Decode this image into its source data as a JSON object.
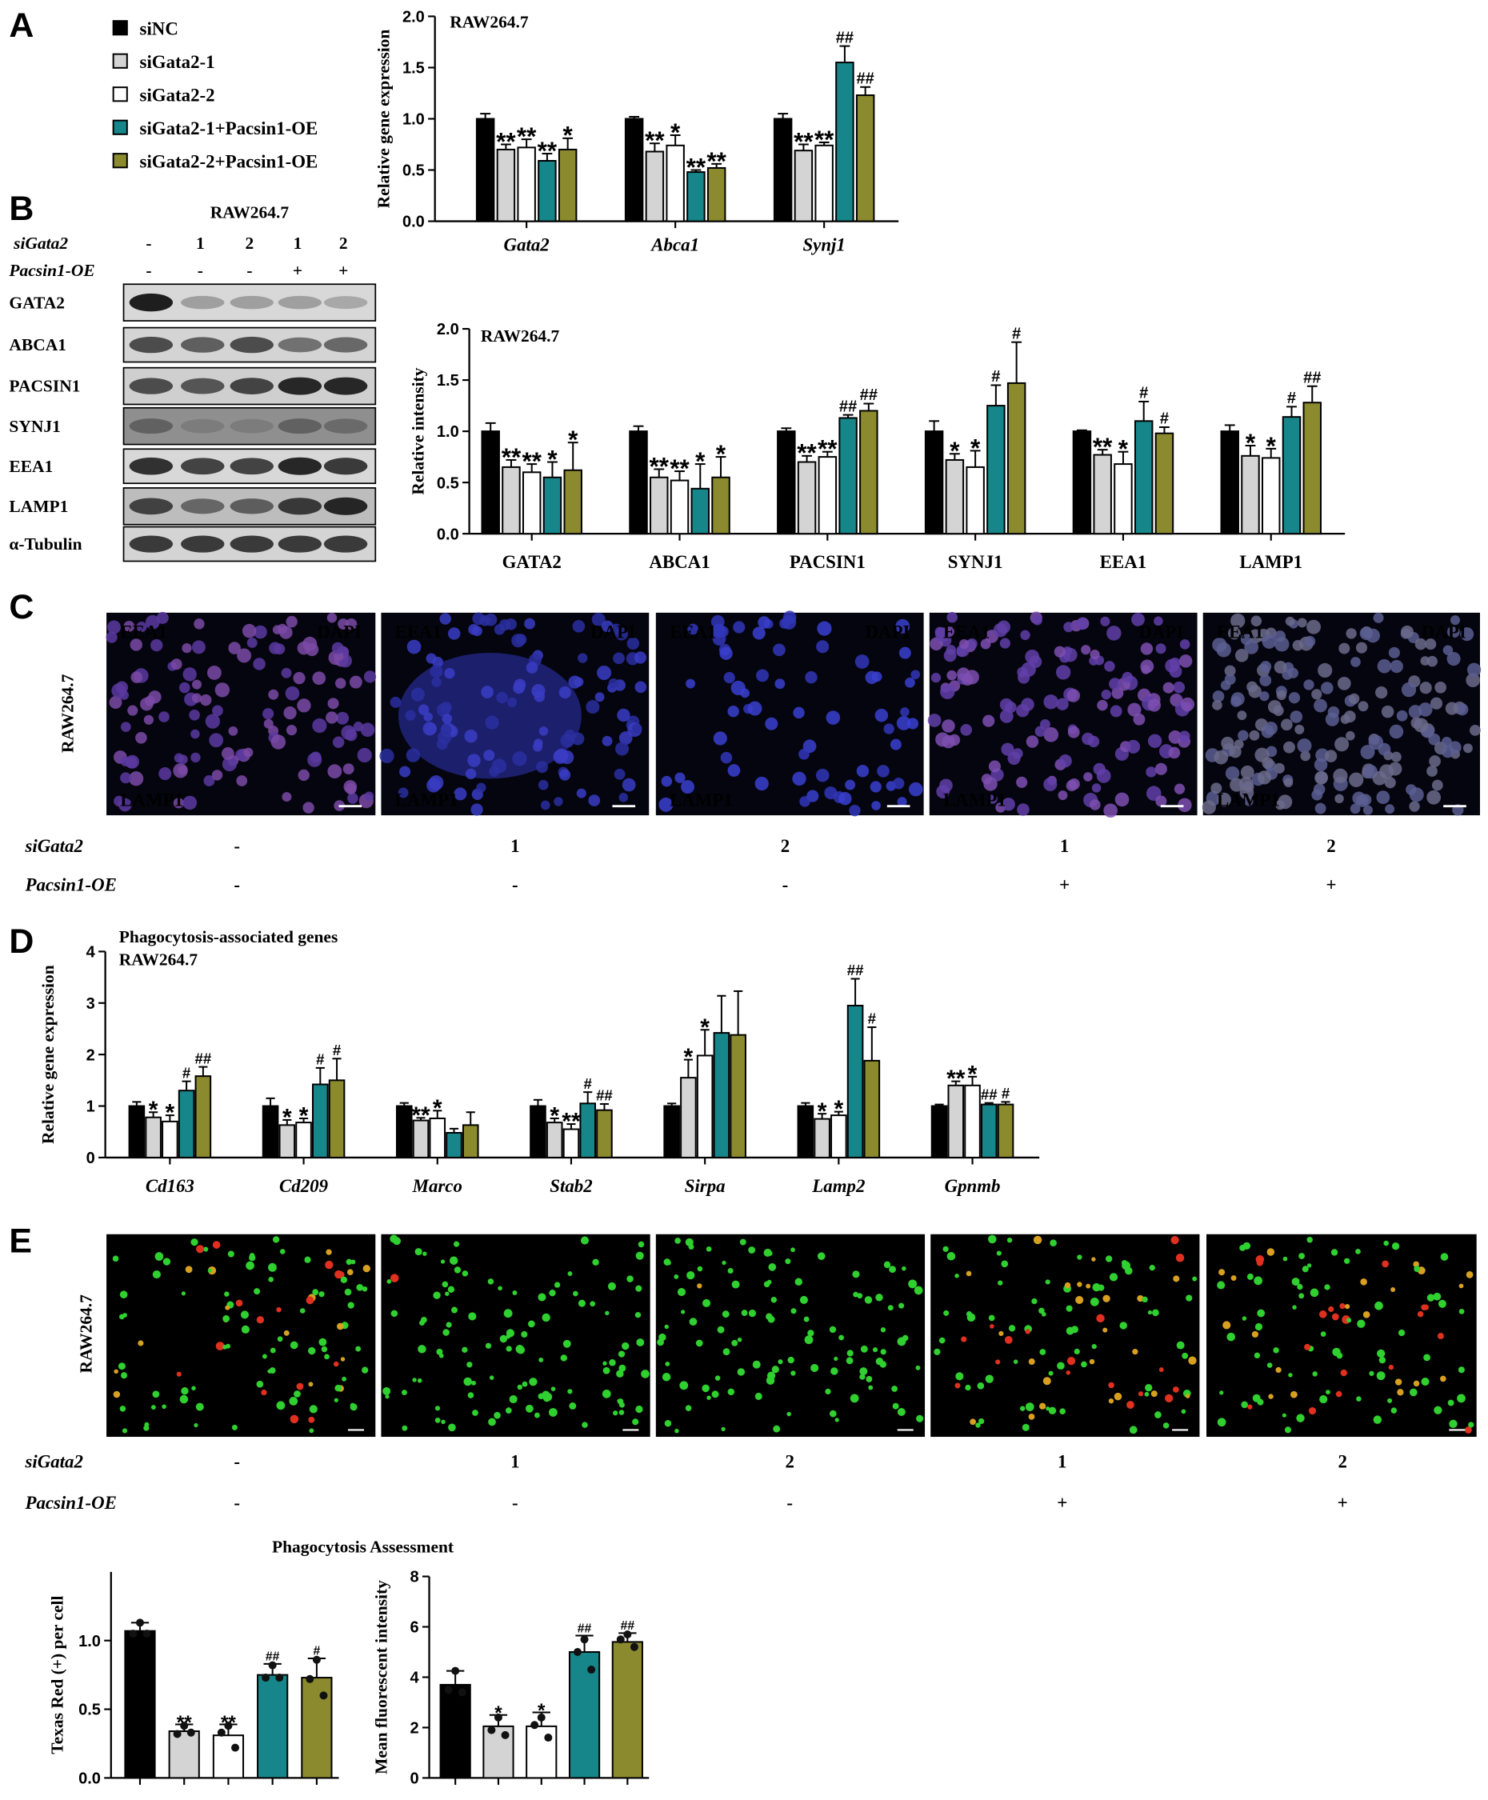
{
  "panel_labels": [
    "A",
    "B",
    "C",
    "D",
    "E"
  ],
  "chart_data": [
    {
      "type": "bar",
      "title": "RAW264.7",
      "ylabel": "Relative gene expression",
      "categories": [
        "Gata2",
        "Abca1",
        "Synj1"
      ],
      "ylim": [
        0,
        2
      ],
      "yticks": [
        {
          "value": 0,
          "label": "0.0"
        },
        0.5,
        {
          "value": 1,
          "label": "1.0"
        },
        1.5,
        {
          "value": 2,
          "label": "2.0"
        }
      ],
      "series": [
        {
          "name": "siNC",
          "color": "#000000",
          "values": [
            1.0,
            1.0,
            1.0
          ],
          "errors": [
            0.05,
            0.02,
            0.05
          ]
        },
        {
          "name": "siGata2-1",
          "color": "#d4d4d4",
          "values": [
            0.7,
            0.68,
            0.69
          ],
          "errors": [
            0.05,
            0.08,
            0.06
          ],
          "annotations": [
            "**",
            "**",
            "**"
          ]
        },
        {
          "name": "siGata2-2",
          "color": "#ffffff",
          "values": [
            0.72,
            0.74,
            0.74
          ],
          "errors": [
            0.08,
            0.1,
            0.03
          ],
          "annotations": [
            "**",
            "*",
            "**"
          ]
        },
        {
          "name": "siGata2-1+Pacsin1-OE",
          "color": "#17868a",
          "values": [
            0.59,
            0.48,
            1.55
          ],
          "errors": [
            0.07,
            0.02,
            0.16
          ],
          "annotations": [
            "**",
            "**",
            "##"
          ]
        },
        {
          "name": "siGata2-2+Pacsin1-OE",
          "color": "#8c8a2e",
          "values": [
            0.7,
            0.52,
            1.23
          ],
          "errors": [
            0.11,
            0.04,
            0.08
          ],
          "annotations": [
            "*",
            "**",
            "##"
          ]
        }
      ]
    },
    {
      "type": "bar",
      "title": "RAW264.7",
      "ylabel": "Relative intensity",
      "categories": [
        "GATA2",
        "ABCA1",
        "PACSIN1",
        "SYNJ1",
        "EEA1",
        "LAMP1"
      ],
      "ylim": [
        0,
        2
      ],
      "yticks": [
        {
          "value": 0,
          "label": "0.0"
        },
        0.5,
        {
          "value": 1,
          "label": "1.0"
        },
        1.5,
        {
          "value": 2,
          "label": "2.0"
        }
      ],
      "series": [
        {
          "color": "#000000",
          "values": [
            1.0,
            1.0,
            1.0,
            1.0,
            1.0,
            1.0
          ],
          "errors": [
            0.08,
            0.05,
            0.03,
            0.1,
            0.01,
            0.06
          ]
        },
        {
          "color": "#d4d4d4",
          "values": [
            0.65,
            0.55,
            0.7,
            0.72,
            0.77,
            0.76
          ],
          "errors": [
            0.07,
            0.08,
            0.06,
            0.06,
            0.05,
            0.1
          ],
          "annotations": [
            "**",
            "**",
            "**",
            "*",
            "**",
            "*"
          ]
        },
        {
          "color": "#ffffff",
          "values": [
            0.6,
            0.52,
            0.75,
            0.65,
            0.68,
            0.74
          ],
          "errors": [
            0.08,
            0.09,
            0.05,
            0.16,
            0.12,
            0.09
          ],
          "annotations": [
            "**",
            "**",
            "**",
            "*",
            "*",
            "*"
          ]
        },
        {
          "color": "#17868a",
          "values": [
            0.55,
            0.44,
            1.13,
            1.25,
            1.1,
            1.14
          ],
          "errors": [
            0.15,
            0.24,
            0.03,
            0.2,
            0.19,
            0.1
          ],
          "annotations": [
            "*",
            "*",
            "##",
            "#",
            "#",
            "#"
          ]
        },
        {
          "color": "#8c8a2e",
          "values": [
            0.62,
            0.55,
            1.2,
            1.47,
            0.98,
            1.28
          ],
          "errors": [
            0.27,
            0.2,
            0.07,
            0.4,
            0.06,
            0.16
          ],
          "annotations": [
            "*",
            "*",
            "##",
            "#",
            "#",
            "##"
          ]
        }
      ]
    },
    {
      "type": "bar",
      "title": "Phagocytosis-associated genes",
      "subtitle": "RAW264.7",
      "ylabel": "Relative gene expression",
      "categories": [
        "Cd163",
        "Cd209",
        "Marco",
        "Stab2",
        "Sirpa",
        "Lamp2",
        "Gpnmb"
      ],
      "ylim": [
        0,
        4
      ],
      "yticks": [
        0,
        1,
        2,
        3,
        4
      ],
      "series": [
        {
          "color": "#000000",
          "values": [
            1.0,
            1.0,
            1.0,
            1.0,
            1.0,
            1.0,
            1.0
          ],
          "errors": [
            0.08,
            0.15,
            0.06,
            0.12,
            0.05,
            0.06,
            0.03
          ]
        },
        {
          "color": "#d4d4d4",
          "values": [
            0.78,
            0.63,
            0.72,
            0.68,
            1.55,
            0.75,
            1.4
          ],
          "errors": [
            0.1,
            0.1,
            0.05,
            0.08,
            0.35,
            0.1,
            0.08
          ],
          "annotations": [
            "*",
            "*",
            "**",
            "*",
            "*",
            "*",
            "**"
          ]
        },
        {
          "color": "#ffffff",
          "values": [
            0.7,
            0.68,
            0.76,
            0.55,
            1.98,
            0.82,
            1.4
          ],
          "errors": [
            0.12,
            0.08,
            0.15,
            0.1,
            0.5,
            0.07,
            0.17
          ],
          "annotations": [
            "*",
            "*",
            "*",
            "**",
            "*",
            "*",
            "*"
          ]
        },
        {
          "color": "#17868a",
          "values": [
            1.3,
            1.42,
            0.48,
            1.05,
            2.42,
            2.95,
            1.03
          ],
          "errors": [
            0.18,
            0.32,
            0.08,
            0.22,
            0.72,
            0.52,
            0.03
          ],
          "annotations": [
            "#",
            "#",
            null,
            "#",
            null,
            "##",
            "##"
          ]
        },
        {
          "color": "#8c8a2e",
          "values": [
            1.58,
            1.5,
            0.63,
            0.92,
            2.38,
            1.88,
            1.03
          ],
          "errors": [
            0.18,
            0.42,
            0.25,
            0.12,
            0.85,
            0.65,
            0.05
          ],
          "annotations": [
            "##",
            "#",
            null,
            "##",
            null,
            "#",
            "#"
          ]
        }
      ]
    },
    {
      "type": "bar",
      "title": "Phagocytosis Assessment",
      "ylabel": "Texas Red (+) per cell",
      "categories": [
        null
      ],
      "ylim": [
        0,
        1.5
      ],
      "yticks": [
        {
          "value": 0,
          "label": "0.0"
        },
        0.5,
        {
          "value": 1,
          "label": "1.0"
        }
      ],
      "series": [
        {
          "color": "#000000",
          "values": [
            1.07
          ],
          "errors": [
            0.06
          ],
          "points": [
            [
              1.13,
              1.05,
              1.05
            ]
          ]
        },
        {
          "color": "#d4d4d4",
          "values": [
            0.34
          ],
          "errors": [
            0.05
          ],
          "points": [
            [
              0.38,
              0.32,
              0.33
            ]
          ],
          "annotations": [
            "**"
          ]
        },
        {
          "color": "#ffffff",
          "values": [
            0.31
          ],
          "errors": [
            0.08
          ],
          "points": [
            [
              0.38,
              0.33,
              0.22
            ]
          ],
          "annotations": [
            "**"
          ]
        },
        {
          "color": "#17868a",
          "values": [
            0.75
          ],
          "errors": [
            0.08
          ],
          "points": [
            [
              0.82,
              0.73,
              0.73
            ]
          ],
          "annotations": [
            "##"
          ]
        },
        {
          "color": "#8c8a2e",
          "values": [
            0.73
          ],
          "errors": [
            0.14
          ],
          "points": [
            [
              0.86,
              0.72,
              0.6
            ]
          ],
          "annotations": [
            "#"
          ]
        }
      ]
    },
    {
      "type": "bar",
      "ylabel": "Mean fluorescent intensity",
      "categories": [
        null
      ],
      "ylim": [
        0,
        8
      ],
      "yticks": [
        0,
        2,
        4,
        6,
        8
      ],
      "series": [
        {
          "color": "#000000",
          "values": [
            3.7
          ],
          "errors": [
            0.55
          ],
          "points": [
            [
              4.25,
              3.5,
              3.4
            ]
          ]
        },
        {
          "color": "#d4d4d4",
          "values": [
            2.05
          ],
          "errors": [
            0.45
          ],
          "points": [
            [
              2.4,
              1.9,
              1.7
            ]
          ],
          "annotations": [
            "*"
          ]
        },
        {
          "color": "#ffffff",
          "values": [
            2.05
          ],
          "errors": [
            0.55
          ],
          "points": [
            [
              2.4,
              2.1,
              1.6
            ]
          ],
          "annotations": [
            "*"
          ]
        },
        {
          "color": "#17868a",
          "values": [
            5.0
          ],
          "errors": [
            0.65
          ],
          "points": [
            [
              5.5,
              5.0,
              4.3
            ]
          ],
          "annotations": [
            "##"
          ]
        },
        {
          "color": "#8c8a2e",
          "values": [
            5.4
          ],
          "errors": [
            0.35
          ],
          "points": [
            [
              5.7,
              5.5,
              5.2
            ]
          ],
          "annotations": [
            "##"
          ]
        }
      ]
    }
  ],
  "western_blot": {
    "title": "RAW264.7",
    "conditions": [
      {
        "label": "siGata2",
        "values": [
          "-",
          "1",
          "2",
          "1",
          "2"
        ]
      },
      {
        "label": "Pacsin1-OE",
        "values": [
          "-",
          "-",
          "-",
          "+",
          "+"
        ]
      }
    ],
    "proteins": [
      "GATA2",
      "ABCA1",
      "PACSIN1",
      "SYNJ1",
      "EEA1",
      "LAMP1",
      "α-Tubulin"
    ]
  },
  "immunofluorescence": {
    "cell_line": "RAW264.7",
    "channels": {
      "green": "EEA1",
      "blue": "DAPI",
      "red": "LAMP1"
    },
    "conditions": [
      {
        "label": "siGata2",
        "values": [
          "-",
          "1",
          "2",
          "1",
          "2"
        ]
      },
      {
        "label": "Pacsin1-OE",
        "values": [
          "-",
          "-",
          "-",
          "+",
          "+"
        ]
      }
    ]
  },
  "phagocytosis_images": {
    "cell_line": "RAW264.7",
    "conditions": [
      {
        "label": "siGata2",
        "values": [
          "-",
          "1",
          "2",
          "1",
          "2"
        ]
      },
      {
        "label": "Pacsin1-OE",
        "values": [
          "-",
          "-",
          "-",
          "+",
          "+"
        ]
      }
    ]
  }
}
